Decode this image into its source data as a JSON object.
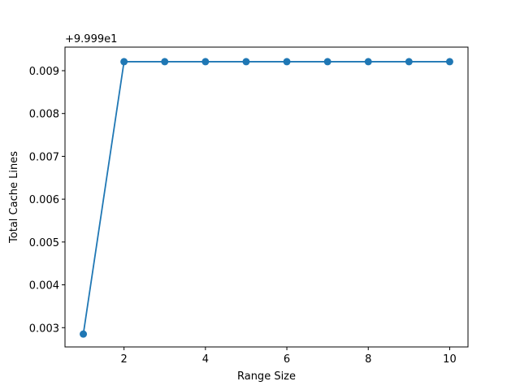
{
  "chart_data": {
    "type": "line",
    "title": "",
    "xlabel": "Range Size",
    "ylabel": "Total Cache Lines",
    "y_offset_text": "+9.999e1",
    "xlim": [
      0.55,
      10.45
    ],
    "ylim": [
      0.00255,
      0.00955
    ],
    "x_ticks": [
      2,
      4,
      6,
      8,
      10
    ],
    "x_tick_labels": [
      "2",
      "4",
      "6",
      "8",
      "10"
    ],
    "y_ticks": [
      0.003,
      0.004,
      0.005,
      0.006,
      0.007,
      0.008,
      0.009
    ],
    "y_tick_labels": [
      "0.003",
      "0.004",
      "0.005",
      "0.006",
      "0.007",
      "0.008",
      "0.009"
    ],
    "grid": false,
    "series": [
      {
        "color": "#1f77b4",
        "marker": "circle",
        "x": [
          1,
          2,
          3,
          4,
          5,
          6,
          7,
          8,
          9,
          10
        ],
        "y": [
          0.00285,
          0.00921,
          0.00921,
          0.00921,
          0.00921,
          0.00921,
          0.00921,
          0.00921,
          0.00921,
          0.00921
        ]
      }
    ]
  }
}
